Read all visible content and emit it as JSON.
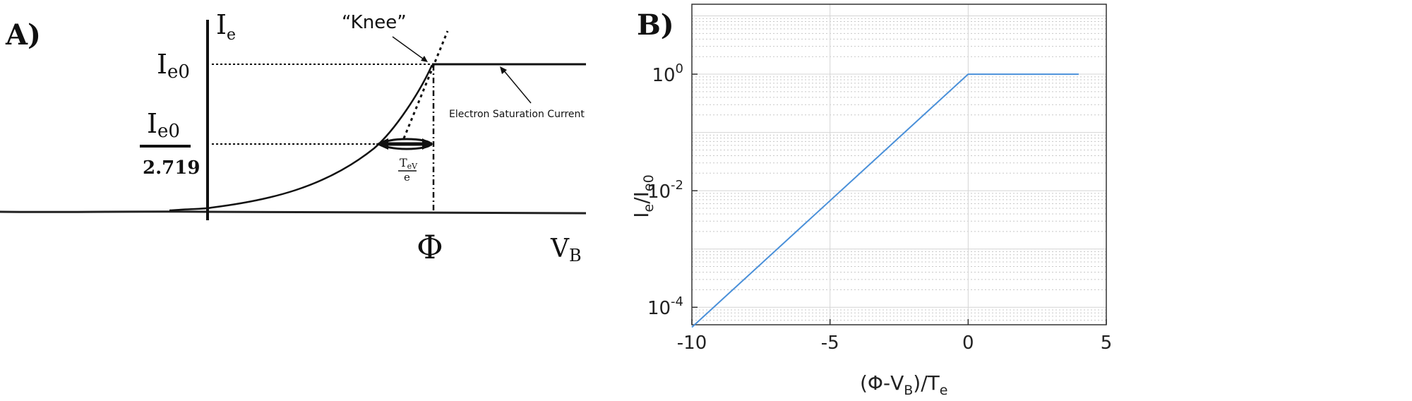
{
  "chart_data": [
    {
      "panel_label": "A)",
      "type": "line",
      "labels": {
        "y_axis": "I",
        "y_axis_sub": "e",
        "x_axis": "V",
        "x_axis_sub": "B",
        "ie0": "I",
        "ie0_sub": "e0",
        "frac_num": "I",
        "frac_num_sub": "e0",
        "frac_den": "2.719",
        "phi": "Φ",
        "knee": "“Knee”",
        "saturation": "Electron Saturation Current",
        "tev_num": "T",
        "tev_num_sub": "eV",
        "tev_den": "e"
      }
    },
    {
      "panel_label": "B)",
      "type": "line",
      "xlabel": "(Φ-V",
      "xlabel_sub": "B",
      "xlabel_tail": ")/T",
      "xlabel_tail_sub": "e",
      "ylabel": "I",
      "ylabel_sub": "e",
      "ylabel_mid": "/I",
      "ylabel_mid_sub": "e0",
      "xlim": [
        -10,
        5
      ],
      "ylim_log10": [
        -4.3,
        1.2
      ],
      "yscale": "log",
      "grid": true,
      "x_ticks": [
        "-10",
        "-5",
        "0",
        "5"
      ],
      "y_ticks": [
        {
          "base": "10",
          "exp": "0"
        },
        {
          "base": "10",
          "exp": "-2"
        },
        {
          "base": "10",
          "exp": "-4"
        }
      ],
      "line_color": "#4a90d9",
      "x": [
        -10,
        0,
        4
      ],
      "y": [
        4.54e-05,
        1,
        1
      ]
    }
  ]
}
